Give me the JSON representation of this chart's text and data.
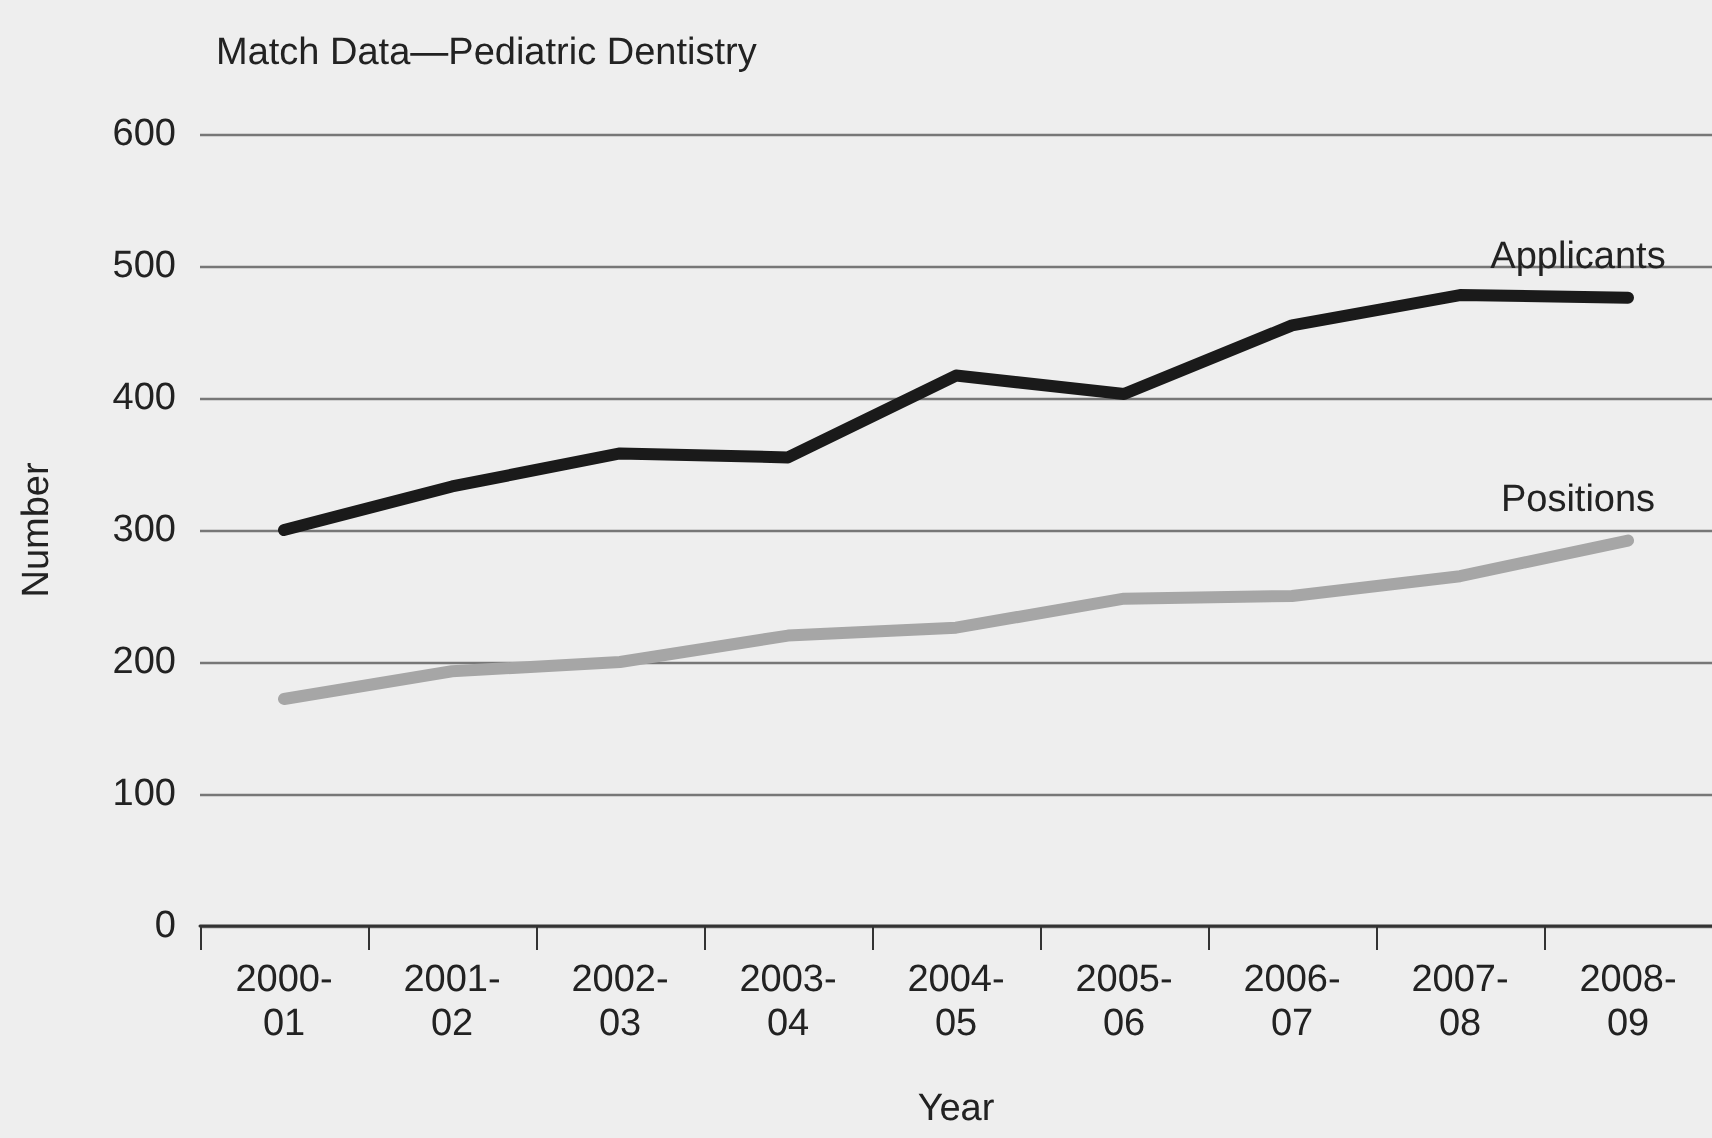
{
  "chart_data": {
    "type": "line",
    "title": "Match Data—Pediatric Dentistry",
    "xlabel": "Year",
    "ylabel": "Number",
    "categories": [
      "2000-\n01",
      "2001-\n02",
      "2002-\n03",
      "2003-\n04",
      "2004-\n05",
      "2005-\n06",
      "2006-\n07",
      "2007-\n08",
      "2008-\n09"
    ],
    "series": [
      {
        "name": "Applicants",
        "color": "#1a1a1a",
        "values": [
          300,
          333,
          358,
          355,
          417,
          403,
          455,
          478,
          476
        ]
      },
      {
        "name": "Positions",
        "color": "#a6a6a6",
        "values": [
          172,
          193,
          200,
          220,
          226,
          248,
          250,
          265,
          292
        ]
      }
    ],
    "ylim": [
      0,
      600
    ],
    "yticks": [
      0,
      100,
      200,
      300,
      400,
      500,
      600
    ],
    "grid": "y",
    "legend": false,
    "marker": "none",
    "line_style": "solid"
  }
}
